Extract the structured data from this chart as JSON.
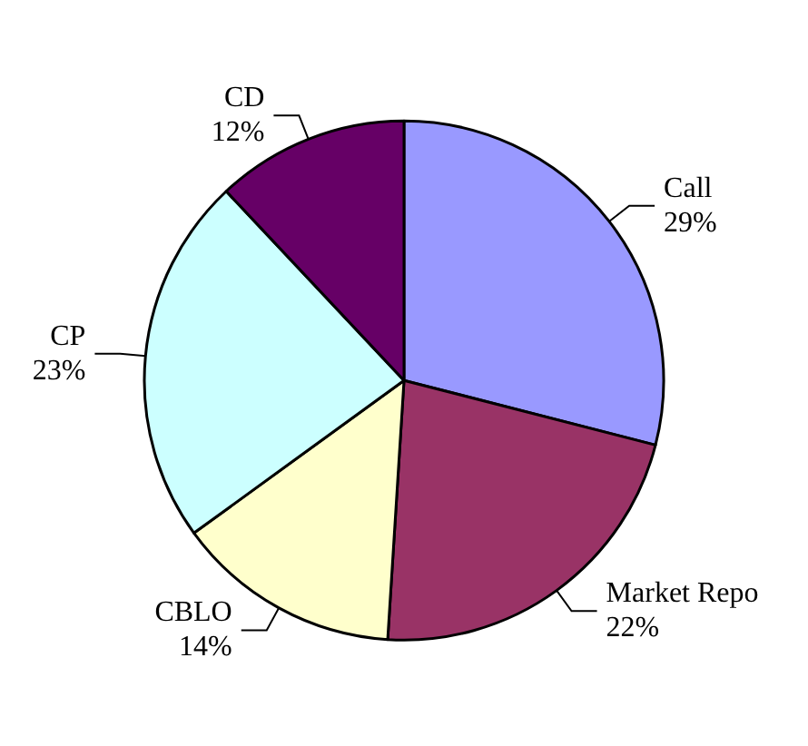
{
  "chart_data": {
    "type": "pie",
    "categories": [
      "Call",
      "Market Repo",
      "CBLO",
      "CP",
      "CD"
    ],
    "values": [
      29,
      22,
      14,
      23,
      12
    ],
    "value_labels": [
      "29%",
      "22%",
      "14%",
      "23%",
      "12%"
    ],
    "colors": [
      "#9999ff",
      "#993366",
      "#ffffcc",
      "#ccffff",
      "#660066"
    ],
    "legend": false
  }
}
